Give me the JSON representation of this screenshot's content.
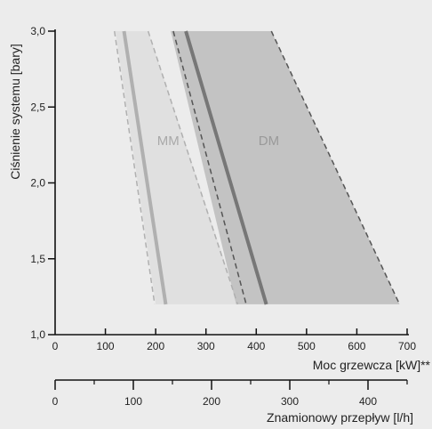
{
  "chart_data": {
    "type": "area",
    "xlabel": "Moc grzewcza [kW]**",
    "ylabel": "Ciśnienie systemu [bary]",
    "x2label": "Znamionowy przepływ [l/h]",
    "xlim": [
      0,
      700
    ],
    "ylim": [
      1.0,
      3.0
    ],
    "x2lim": [
      0,
      450
    ],
    "x_ticks": [
      0,
      100,
      200,
      300,
      400,
      500,
      600,
      700
    ],
    "y_ticks": [
      1.0,
      1.5,
      2.0,
      2.5,
      3.0
    ],
    "y_tick_labels": [
      "1,0",
      "1,5",
      "2,0",
      "2,5",
      "3,0"
    ],
    "x2_ticks": [
      0,
      100,
      200,
      300,
      400
    ],
    "x2_minor_ticks": [
      50,
      150,
      250,
      350,
      450
    ],
    "grid": false,
    "regions": [
      {
        "name": "MM",
        "fill": "#e0e0e0",
        "text_color": "#a9a9a9",
        "label_x": 225,
        "label_y": 2.25,
        "polygon": [
          [
            120,
            3.0
          ],
          [
            185,
            3.0
          ],
          [
            365,
            1.2
          ],
          [
            200,
            1.2
          ]
        ]
      },
      {
        "name": "DM",
        "fill": "#c3c3c3",
        "text_color": "#9a9a9a",
        "label_x": 425,
        "label_y": 2.25,
        "polygon": [
          [
            230,
            3.0
          ],
          [
            430,
            3.0
          ],
          [
            685,
            1.2
          ],
          [
            360,
            1.2
          ]
        ]
      }
    ],
    "series": [
      {
        "name": "MM",
        "color": "#b0b0b0",
        "style": "solid",
        "width": 4,
        "points": [
          [
            137,
            3.0
          ],
          [
            220,
            1.2
          ]
        ]
      },
      {
        "name": "",
        "color": "#b0b0b0",
        "style": "dashed",
        "width": 1.5,
        "points": [
          [
            118,
            3.0
          ],
          [
            198,
            1.2
          ]
        ]
      },
      {
        "name": "",
        "color": "#b0b0b0",
        "style": "dashed",
        "width": 1.5,
        "points": [
          [
            185,
            3.0
          ],
          [
            363,
            1.2
          ]
        ]
      },
      {
        "name": "DM",
        "color": "#777777",
        "style": "solid",
        "width": 4,
        "points": [
          [
            260,
            3.0
          ],
          [
            420,
            1.2
          ]
        ]
      },
      {
        "name": "",
        "color": "#555555",
        "style": "dashed",
        "width": 1.5,
        "points": [
          [
            235,
            3.0
          ],
          [
            380,
            1.2
          ]
        ]
      },
      {
        "name": "",
        "color": "#555555",
        "style": "dashed",
        "width": 1.5,
        "points": [
          [
            430,
            3.0
          ],
          [
            685,
            1.2
          ]
        ]
      }
    ]
  }
}
